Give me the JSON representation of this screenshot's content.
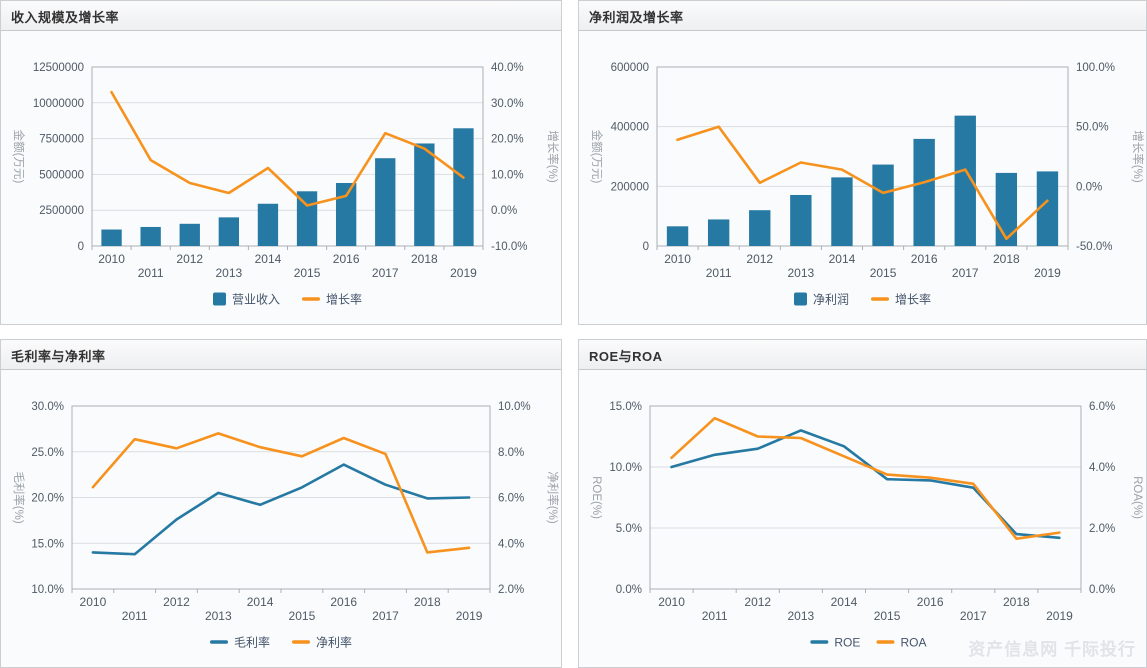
{
  "page": {
    "watermark": "资产信息网 千际投行"
  },
  "colors": {
    "bar_blue": "#2579A2",
    "accent_orange": "#F6921D",
    "grid_line": "#DADEE2",
    "axis_line": "#A9B0B6",
    "tick_label": "#4E5A66",
    "axis_title": "#9AA1A8",
    "legend_text": "#44546A"
  },
  "chart_data": [
    {
      "id": "revenue-growth",
      "title": "收入规模及增长率",
      "type": "bar",
      "subtype": "bar+line dual-axis",
      "categories": [
        "2010",
        "2011",
        "2012",
        "2013",
        "2014",
        "2015",
        "2016",
        "2017",
        "2018",
        "2019"
      ],
      "left_axis": {
        "title": "金额(万元)",
        "min": 0,
        "max": 12500000,
        "ticks": [
          0,
          2500000,
          5000000,
          7500000,
          10000000,
          12500000
        ],
        "labels": [
          "0",
          "2500000",
          "5000000",
          "7500000",
          "10000000",
          "12500000"
        ]
      },
      "right_axis": {
        "title": "增长率(%)",
        "min": -10,
        "max": 40,
        "ticks": [
          -10,
          0,
          10,
          20,
          30,
          40
        ],
        "labels": [
          "-10.0%",
          "0.0%",
          "10.0%",
          "20.0%",
          "30.0%",
          "40.0%"
        ]
      },
      "series": [
        {
          "id": "operating-revenue",
          "name": "营业收入",
          "kind": "bar",
          "axis": "left",
          "color": "#2579A2",
          "values": [
            1150000,
            1330000,
            1550000,
            2000000,
            2950000,
            3820000,
            4400000,
            6130000,
            7160000,
            8220000
          ]
        },
        {
          "id": "growth-rate",
          "name": "增长率",
          "kind": "line",
          "axis": "right",
          "color": "#F6921D",
          "values": [
            33.0,
            14.0,
            7.6,
            4.8,
            11.8,
            1.3,
            4.0,
            21.5,
            17.2,
            9.1
          ]
        }
      ]
    },
    {
      "id": "net-profit-growth",
      "title": "净利润及增长率",
      "type": "bar",
      "subtype": "bar+line dual-axis",
      "categories": [
        "2010",
        "2011",
        "2012",
        "2013",
        "2014",
        "2015",
        "2016",
        "2017",
        "2018",
        "2019"
      ],
      "left_axis": {
        "title": "金额(万元)",
        "min": 0,
        "max": 600000,
        "ticks": [
          0,
          200000,
          400000,
          600000
        ],
        "labels": [
          "0",
          "200000",
          "400000",
          "600000"
        ]
      },
      "right_axis": {
        "title": "增长率(%)",
        "min": -50,
        "max": 100,
        "ticks": [
          -50,
          0,
          50,
          100
        ],
        "labels": [
          "-50.0%",
          "0.0%",
          "50.0%",
          "100.0%"
        ]
      },
      "series": [
        {
          "id": "net-profit",
          "name": "净利润",
          "kind": "bar",
          "axis": "left",
          "color": "#2579A2",
          "values": [
            66000,
            89000,
            120000,
            171000,
            230000,
            273000,
            359000,
            437000,
            245000,
            250000
          ]
        },
        {
          "id": "growth-rate",
          "name": "增长率",
          "kind": "line",
          "axis": "right",
          "color": "#F6921D",
          "values": [
            39.0,
            50.0,
            3.0,
            20.0,
            14.0,
            -5.5,
            3.5,
            14.0,
            -44.0,
            -12.0
          ]
        }
      ]
    },
    {
      "id": "margin-rates",
      "title": "毛利率与净利率",
      "type": "line",
      "subtype": "line+line dual-axis",
      "categories": [
        "2010",
        "2011",
        "2012",
        "2013",
        "2014",
        "2015",
        "2016",
        "2017",
        "2018",
        "2019"
      ],
      "left_axis": {
        "title": "毛利率(%)",
        "min": 10,
        "max": 30,
        "ticks": [
          10,
          15,
          20,
          25,
          30
        ],
        "labels": [
          "10.0%",
          "15.0%",
          "20.0%",
          "25.0%",
          "30.0%"
        ]
      },
      "right_axis": {
        "title": "净利率(%)",
        "min": 2,
        "max": 10,
        "ticks": [
          2,
          4,
          6,
          8,
          10
        ],
        "labels": [
          "2.0%",
          "4.0%",
          "6.0%",
          "8.0%",
          "10.0%"
        ]
      },
      "series": [
        {
          "id": "gross-margin",
          "name": "毛利率",
          "kind": "line",
          "axis": "left",
          "color": "#2579A2",
          "values": [
            14.0,
            13.8,
            17.6,
            20.5,
            19.2,
            21.1,
            23.6,
            21.4,
            19.9,
            20.0
          ]
        },
        {
          "id": "net-margin",
          "name": "净利率",
          "kind": "line",
          "axis": "right",
          "color": "#F6921D",
          "values": [
            6.45,
            8.55,
            8.15,
            8.8,
            8.2,
            7.8,
            8.6,
            7.9,
            3.6,
            3.8
          ]
        }
      ]
    },
    {
      "id": "roe-roa",
      "title": "ROE与ROA",
      "type": "line",
      "subtype": "line+line dual-axis",
      "categories": [
        "2010",
        "2011",
        "2012",
        "2013",
        "2014",
        "2015",
        "2016",
        "2017",
        "2018",
        "2019"
      ],
      "left_axis": {
        "title": "ROE(%)",
        "min": 0,
        "max": 15,
        "ticks": [
          0,
          5,
          10,
          15
        ],
        "labels": [
          "0.0%",
          "5.0%",
          "10.0%",
          "15.0%"
        ]
      },
      "right_axis": {
        "title": "ROA(%)",
        "min": 0,
        "max": 6,
        "ticks": [
          0,
          2,
          4,
          6
        ],
        "labels": [
          "0.0%",
          "2.0%",
          "4.0%",
          "6.0%"
        ]
      },
      "series": [
        {
          "id": "roe",
          "name": "ROE",
          "kind": "line",
          "axis": "left",
          "color": "#2579A2",
          "values": [
            10.0,
            11.0,
            11.5,
            13.0,
            11.7,
            9.0,
            8.9,
            8.3,
            4.5,
            4.2
          ]
        },
        {
          "id": "roa",
          "name": "ROA",
          "kind": "line",
          "axis": "right",
          "color": "#F6921D",
          "values": [
            4.3,
            5.6,
            5.0,
            4.95,
            4.35,
            3.75,
            3.65,
            3.45,
            1.65,
            1.85
          ]
        }
      ]
    }
  ]
}
